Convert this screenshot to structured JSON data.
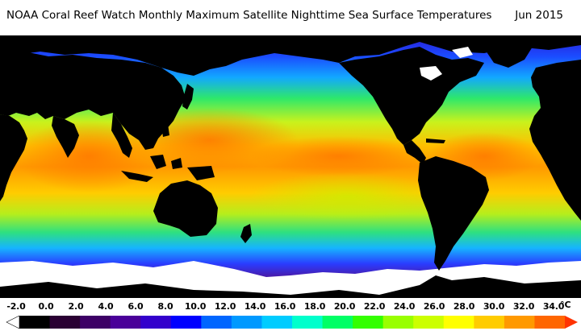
{
  "header": {
    "title": "NOAA Coral Reef Watch Monthly Maximum Satellite Nighttime Sea Surface Temperatures",
    "date": "Jun 2015"
  },
  "legend": {
    "unit": "°C",
    "ticks": [
      "-2.0",
      "0.0",
      "2.0",
      "4.0",
      "6.0",
      "8.0",
      "10.0",
      "12.0",
      "14.0",
      "16.0",
      "18.0",
      "20.0",
      "22.0",
      "24.0",
      "26.0",
      "28.0",
      "30.0",
      "32.0",
      "34.0"
    ],
    "colors": [
      "#ffffff",
      "#000000",
      "#2a0033",
      "#3d0066",
      "#4a0099",
      "#3300cc",
      "#0000ff",
      "#0066ff",
      "#0099ff",
      "#00ccff",
      "#00ffcc",
      "#00ff66",
      "#33ff00",
      "#99ff00",
      "#ccff00",
      "#ffff00",
      "#ffcc00",
      "#ff9900",
      "#ff6600",
      "#ff3300"
    ]
  }
}
